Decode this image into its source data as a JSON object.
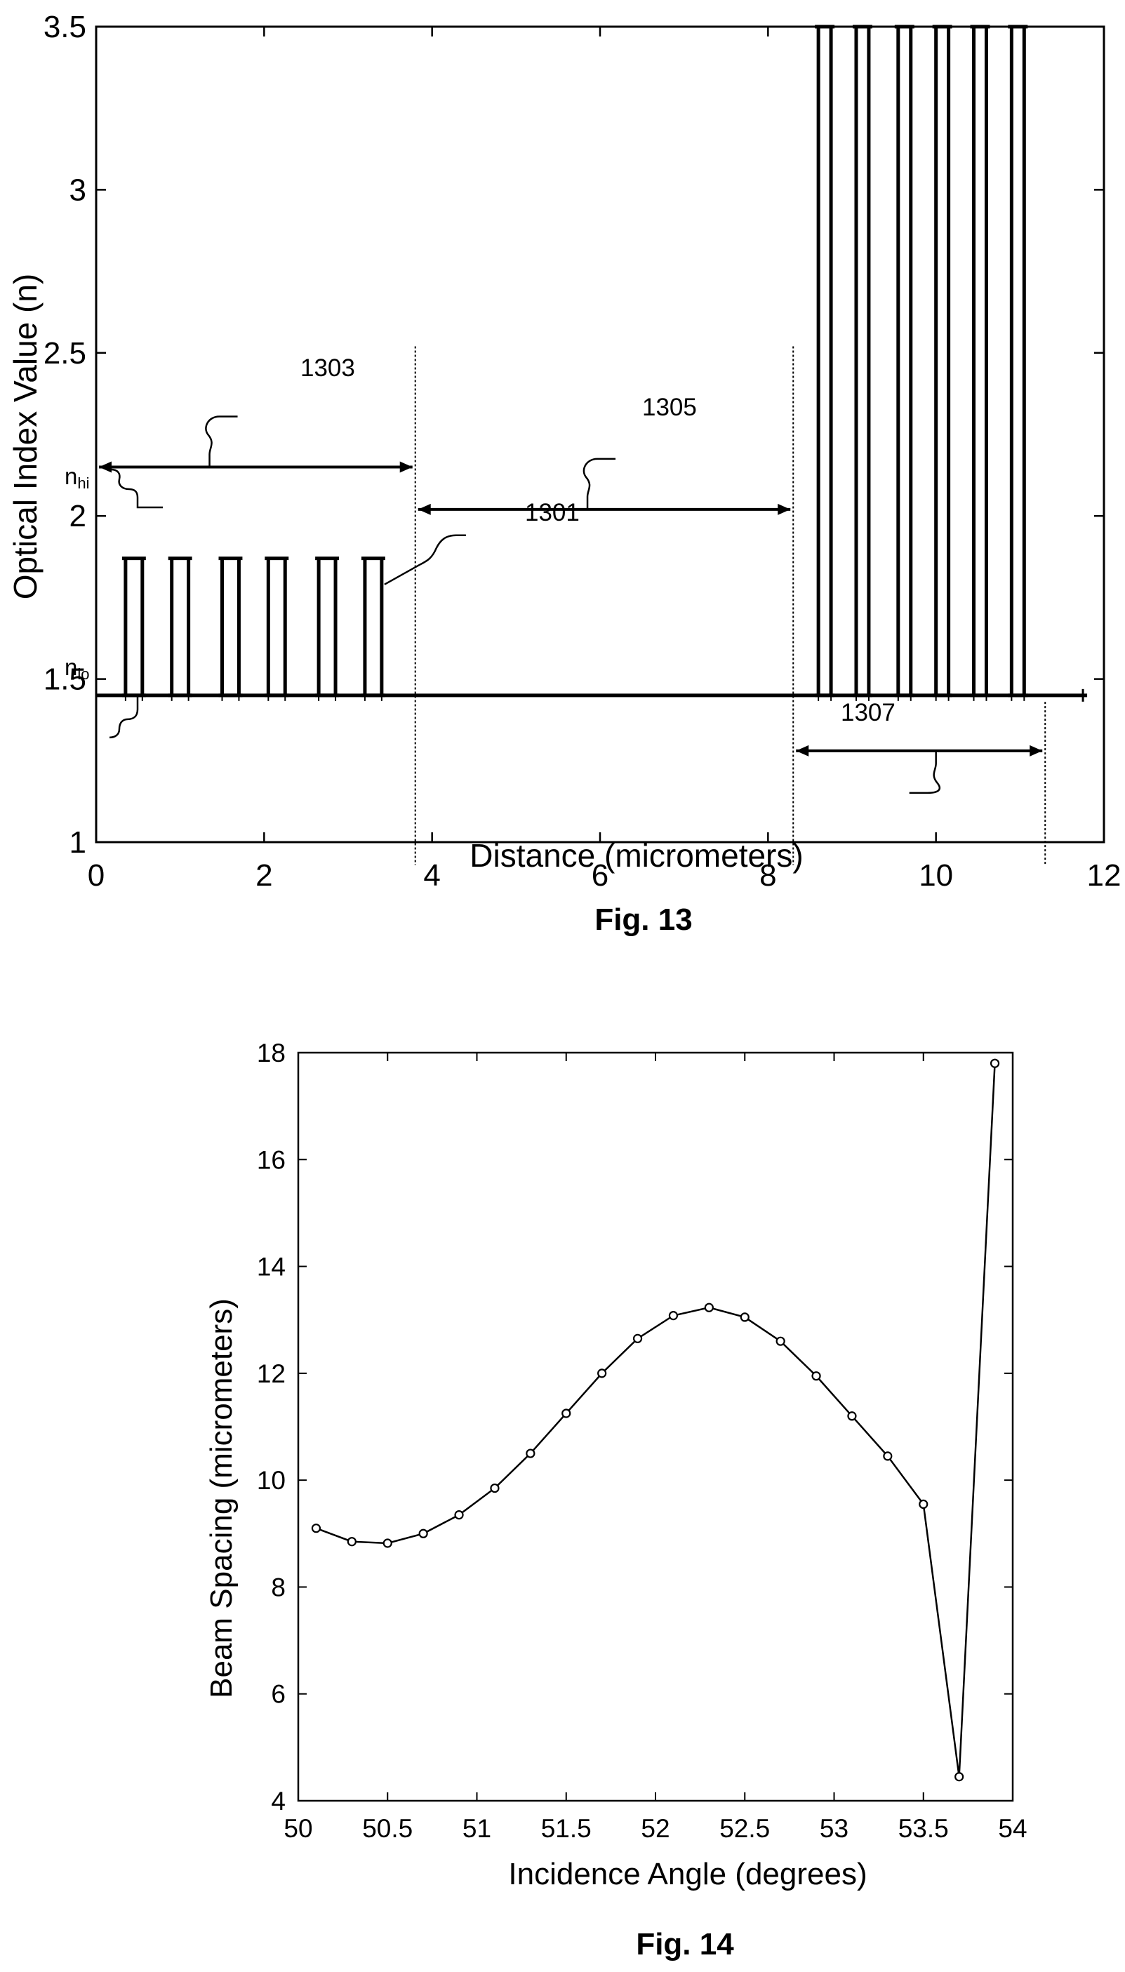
{
  "figures": [
    {
      "caption": "Fig. 13",
      "ref_labels": {
        "r1301": "1301",
        "r1303": "1303",
        "r1305": "1305",
        "r1307": "1307",
        "n_hi_main": "n",
        "n_hi_sub": "hi",
        "n_lo_main": "n",
        "n_lo_sub": "lo"
      }
    },
    {
      "caption": "Fig. 14"
    }
  ],
  "chart_data": [
    {
      "type": "line",
      "title": "",
      "xlabel": "Distance (micrometers)",
      "ylabel": "Optical Index Value (n)",
      "xlim": [
        0,
        12
      ],
      "ylim": [
        1,
        3.5
      ],
      "xticks": [
        0,
        2,
        4,
        6,
        8,
        10,
        12
      ],
      "yticks": [
        1,
        1.5,
        2,
        2.5,
        3,
        3.5
      ],
      "ytick_labels": [
        "1",
        "1.5",
        "2",
        "2.5",
        "3",
        "3.5"
      ],
      "grid": false,
      "baseline": {
        "n": 1.45,
        "x_start": 0,
        "x_end": 11.8
      },
      "series": [
        {
          "region": "1301",
          "peak_n": 1.87,
          "x_pairs": [
            [
              0.35,
              0.55
            ],
            [
              0.9,
              1.1
            ],
            [
              1.5,
              1.7
            ],
            [
              2.05,
              2.25
            ],
            [
              2.65,
              2.85
            ],
            [
              3.2,
              3.4
            ]
          ]
        },
        {
          "region": "1307",
          "peak_n": 3.5,
          "x_pairs": [
            [
              8.6,
              8.75
            ],
            [
              9.05,
              9.2
            ],
            [
              9.55,
              9.7
            ],
            [
              10.0,
              10.15
            ],
            [
              10.45,
              10.6
            ],
            [
              10.9,
              11.05
            ]
          ]
        }
      ],
      "annotations": {
        "vlines": [
          3.8,
          8.3,
          11.3
        ],
        "span_1303": {
          "x_start": 0,
          "x_end": 3.8,
          "n": 2.15
        },
        "span_1305": {
          "x_start": 3.8,
          "x_end": 8.3,
          "n": 2.02
        },
        "span_1307": {
          "x_start": 8.3,
          "x_end": 11.3,
          "n": 1.28
        }
      }
    },
    {
      "type": "line",
      "title": "",
      "xlabel": "Incidence Angle (degrees)",
      "ylabel": "Beam Spacing (micrometers)",
      "xlim": [
        50,
        54
      ],
      "ylim": [
        4,
        18
      ],
      "xticks": [
        50,
        50.5,
        51,
        51.5,
        52,
        52.5,
        53,
        53.5,
        54
      ],
      "xtick_labels": [
        "50",
        "50.5",
        "51",
        "51.5",
        "52",
        "52.5",
        "53",
        "53.5",
        "54"
      ],
      "yticks": [
        4,
        6,
        8,
        10,
        12,
        14,
        16,
        18
      ],
      "grid": false,
      "marker": "circle",
      "x": [
        50.1,
        50.3,
        50.5,
        50.7,
        50.9,
        51.1,
        51.3,
        51.5,
        51.7,
        51.9,
        52.1,
        52.3,
        52.5,
        52.7,
        52.9,
        53.1,
        53.3,
        53.5,
        53.7,
        53.9
      ],
      "y": [
        9.1,
        8.85,
        8.82,
        9.0,
        9.35,
        9.85,
        10.5,
        11.25,
        12.0,
        12.65,
        13.08,
        13.23,
        13.05,
        12.6,
        11.95,
        11.2,
        10.45,
        9.55,
        4.45,
        17.8
      ]
    }
  ]
}
